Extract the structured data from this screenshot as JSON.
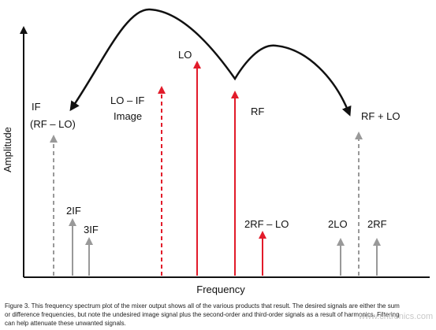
{
  "axes": {
    "y_label": "Amplitude",
    "x_label": "Frequency"
  },
  "signals": [
    {
      "label": "IF",
      "label2": "(RF – LO)"
    },
    {
      "label": "2IF"
    },
    {
      "label": "3IF"
    },
    {
      "label": "LO – IF",
      "label2": "Image"
    },
    {
      "label": "LO"
    },
    {
      "label": "RF"
    },
    {
      "label": "2RF – LO"
    },
    {
      "label": "2LO"
    },
    {
      "label": "RF + LO"
    },
    {
      "label": "2RF"
    }
  ],
  "caption": [
    "Figure 3. This frequency spectrum plot of the mixer output shows all of the various products that result. The desired signals are either the sum",
    "or difference frequencies, but note the undesired image signal plus the second-order and third-order signals as a result of harmonics. Filtering",
    "can help attenuate these unwanted signals."
  ],
  "watermark": "www.cntronics.com"
}
